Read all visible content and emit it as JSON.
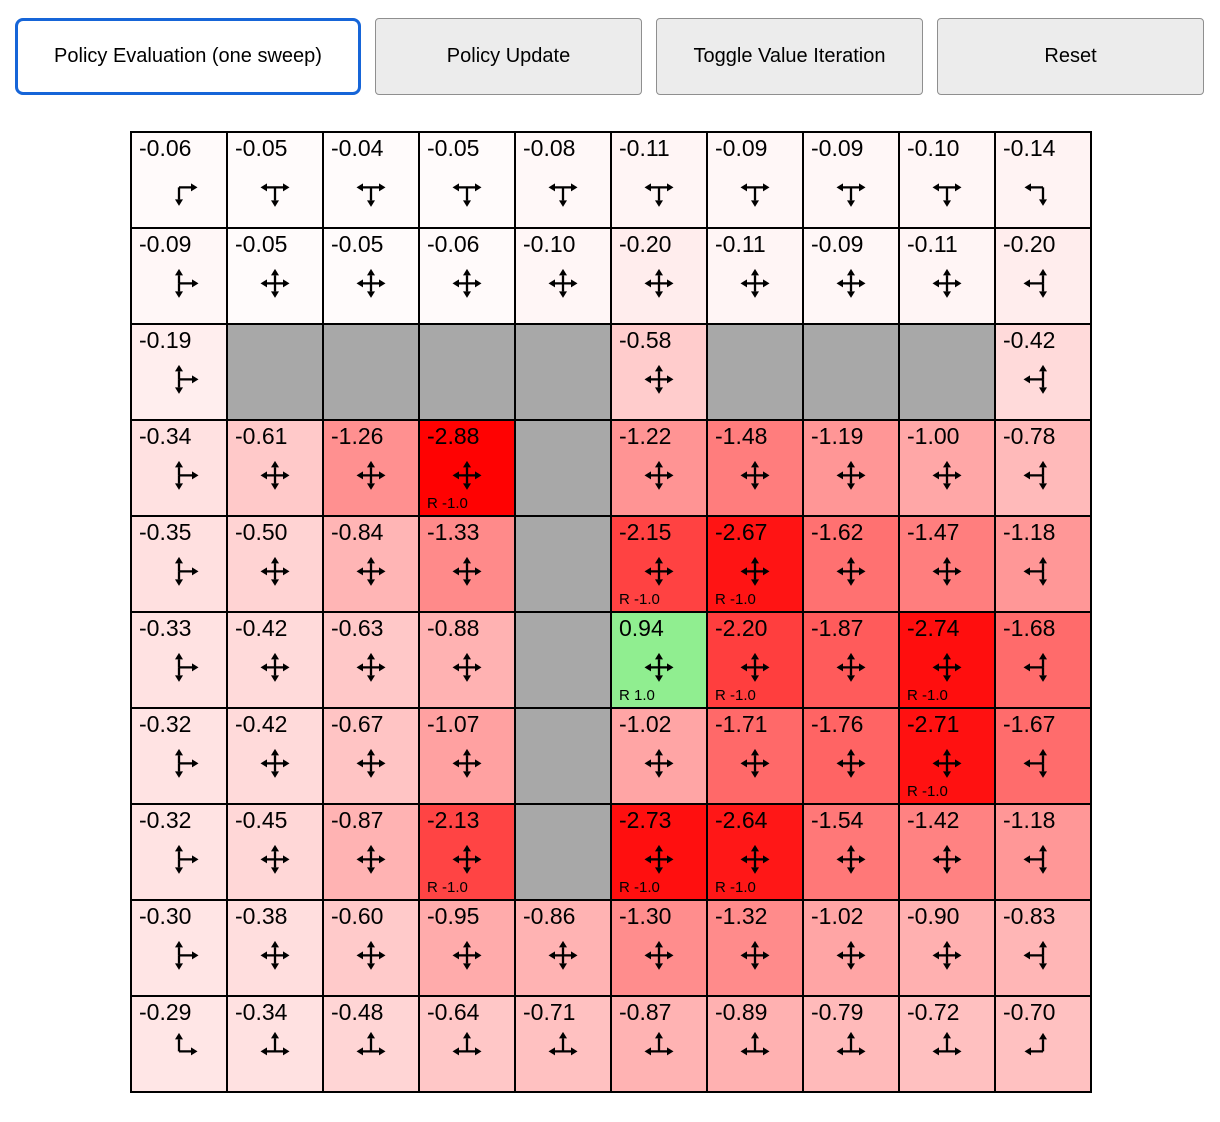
{
  "toolbar": {
    "buttons": [
      {
        "label": "Policy Evaluation (one sweep)",
        "active": true
      },
      {
        "label": "Policy Update",
        "active": false
      },
      {
        "label": "Toggle Value Iteration",
        "active": false
      },
      {
        "label": "Reset",
        "active": false
      }
    ]
  },
  "colors": {
    "active_button_border": "#1665d8",
    "button_bg": "#ececec",
    "active_button_bg": "#ffffff",
    "wall": "#a8a8a8",
    "positive_cell": "#90ee90",
    "negative_full": "#ff0000",
    "grid_border": "#000000",
    "value_abs_max": 2.9
  },
  "grid": {
    "rows": 10,
    "cols": 10,
    "cells": [
      [
        {
          "value": "-0.06",
          "arrow": "corner-tl"
        },
        {
          "value": "-0.05",
          "arrow": "tri-down"
        },
        {
          "value": "-0.04",
          "arrow": "tri-down"
        },
        {
          "value": "-0.05",
          "arrow": "tri-down"
        },
        {
          "value": "-0.08",
          "arrow": "tri-down"
        },
        {
          "value": "-0.11",
          "arrow": "tri-down"
        },
        {
          "value": "-0.09",
          "arrow": "tri-down"
        },
        {
          "value": "-0.09",
          "arrow": "tri-down"
        },
        {
          "value": "-0.10",
          "arrow": "tri-down"
        },
        {
          "value": "-0.14",
          "arrow": "corner-tr"
        }
      ],
      [
        {
          "value": "-0.09",
          "arrow": "tri-right"
        },
        {
          "value": "-0.05",
          "arrow": "quad"
        },
        {
          "value": "-0.05",
          "arrow": "quad"
        },
        {
          "value": "-0.06",
          "arrow": "quad"
        },
        {
          "value": "-0.10",
          "arrow": "quad"
        },
        {
          "value": "-0.20",
          "arrow": "quad"
        },
        {
          "value": "-0.11",
          "arrow": "quad"
        },
        {
          "value": "-0.09",
          "arrow": "quad"
        },
        {
          "value": "-0.11",
          "arrow": "quad"
        },
        {
          "value": "-0.20",
          "arrow": "tri-left"
        }
      ],
      [
        {
          "value": "-0.19",
          "arrow": "tri-right"
        },
        {
          "wall": true
        },
        {
          "wall": true
        },
        {
          "wall": true
        },
        {
          "wall": true
        },
        {
          "value": "-0.58",
          "arrow": "quad"
        },
        {
          "wall": true
        },
        {
          "wall": true
        },
        {
          "wall": true
        },
        {
          "value": "-0.42",
          "arrow": "tri-left"
        }
      ],
      [
        {
          "value": "-0.34",
          "arrow": "tri-right"
        },
        {
          "value": "-0.61",
          "arrow": "quad"
        },
        {
          "value": "-1.26",
          "arrow": "quad"
        },
        {
          "value": "-2.88",
          "arrow": "quad",
          "reward": "R -1.0"
        },
        {
          "wall": true
        },
        {
          "value": "-1.22",
          "arrow": "quad"
        },
        {
          "value": "-1.48",
          "arrow": "quad"
        },
        {
          "value": "-1.19",
          "arrow": "quad"
        },
        {
          "value": "-1.00",
          "arrow": "quad"
        },
        {
          "value": "-0.78",
          "arrow": "tri-left"
        }
      ],
      [
        {
          "value": "-0.35",
          "arrow": "tri-right"
        },
        {
          "value": "-0.50",
          "arrow": "quad"
        },
        {
          "value": "-0.84",
          "arrow": "quad"
        },
        {
          "value": "-1.33",
          "arrow": "quad"
        },
        {
          "wall": true
        },
        {
          "value": "-2.15",
          "arrow": "quad",
          "reward": "R -1.0"
        },
        {
          "value": "-2.67",
          "arrow": "quad",
          "reward": "R -1.0"
        },
        {
          "value": "-1.62",
          "arrow": "quad"
        },
        {
          "value": "-1.47",
          "arrow": "quad"
        },
        {
          "value": "-1.18",
          "arrow": "tri-left"
        }
      ],
      [
        {
          "value": "-0.33",
          "arrow": "tri-right"
        },
        {
          "value": "-0.42",
          "arrow": "quad"
        },
        {
          "value": "-0.63",
          "arrow": "quad"
        },
        {
          "value": "-0.88",
          "arrow": "quad"
        },
        {
          "wall": true
        },
        {
          "value": "0.94",
          "arrow": "quad",
          "reward": "R 1.0"
        },
        {
          "value": "-2.20",
          "arrow": "quad",
          "reward": "R -1.0"
        },
        {
          "value": "-1.87",
          "arrow": "quad"
        },
        {
          "value": "-2.74",
          "arrow": "quad",
          "reward": "R -1.0"
        },
        {
          "value": "-1.68",
          "arrow": "tri-left"
        }
      ],
      [
        {
          "value": "-0.32",
          "arrow": "tri-right"
        },
        {
          "value": "-0.42",
          "arrow": "quad"
        },
        {
          "value": "-0.67",
          "arrow": "quad"
        },
        {
          "value": "-1.07",
          "arrow": "quad"
        },
        {
          "wall": true
        },
        {
          "value": "-1.02",
          "arrow": "quad"
        },
        {
          "value": "-1.71",
          "arrow": "quad"
        },
        {
          "value": "-1.76",
          "arrow": "quad"
        },
        {
          "value": "-2.71",
          "arrow": "quad",
          "reward": "R -1.0"
        },
        {
          "value": "-1.67",
          "arrow": "tri-left"
        }
      ],
      [
        {
          "value": "-0.32",
          "arrow": "tri-right"
        },
        {
          "value": "-0.45",
          "arrow": "quad"
        },
        {
          "value": "-0.87",
          "arrow": "quad"
        },
        {
          "value": "-2.13",
          "arrow": "quad",
          "reward": "R -1.0"
        },
        {
          "wall": true
        },
        {
          "value": "-2.73",
          "arrow": "quad",
          "reward": "R -1.0"
        },
        {
          "value": "-2.64",
          "arrow": "quad",
          "reward": "R -1.0"
        },
        {
          "value": "-1.54",
          "arrow": "quad"
        },
        {
          "value": "-1.42",
          "arrow": "quad"
        },
        {
          "value": "-1.18",
          "arrow": "tri-left"
        }
      ],
      [
        {
          "value": "-0.30",
          "arrow": "tri-right"
        },
        {
          "value": "-0.38",
          "arrow": "quad"
        },
        {
          "value": "-0.60",
          "arrow": "quad"
        },
        {
          "value": "-0.95",
          "arrow": "quad"
        },
        {
          "value": "-0.86",
          "arrow": "quad"
        },
        {
          "value": "-1.30",
          "arrow": "quad"
        },
        {
          "value": "-1.32",
          "arrow": "quad"
        },
        {
          "value": "-1.02",
          "arrow": "quad"
        },
        {
          "value": "-0.90",
          "arrow": "quad"
        },
        {
          "value": "-0.83",
          "arrow": "tri-left"
        }
      ],
      [
        {
          "value": "-0.29",
          "arrow": "corner-bl"
        },
        {
          "value": "-0.34",
          "arrow": "tri-up"
        },
        {
          "value": "-0.48",
          "arrow": "tri-up"
        },
        {
          "value": "-0.64",
          "arrow": "tri-up"
        },
        {
          "value": "-0.71",
          "arrow": "tri-up"
        },
        {
          "value": "-0.87",
          "arrow": "tri-up"
        },
        {
          "value": "-0.89",
          "arrow": "tri-up"
        },
        {
          "value": "-0.79",
          "arrow": "tri-up"
        },
        {
          "value": "-0.72",
          "arrow": "tri-up"
        },
        {
          "value": "-0.70",
          "arrow": "corner-br"
        }
      ]
    ]
  }
}
